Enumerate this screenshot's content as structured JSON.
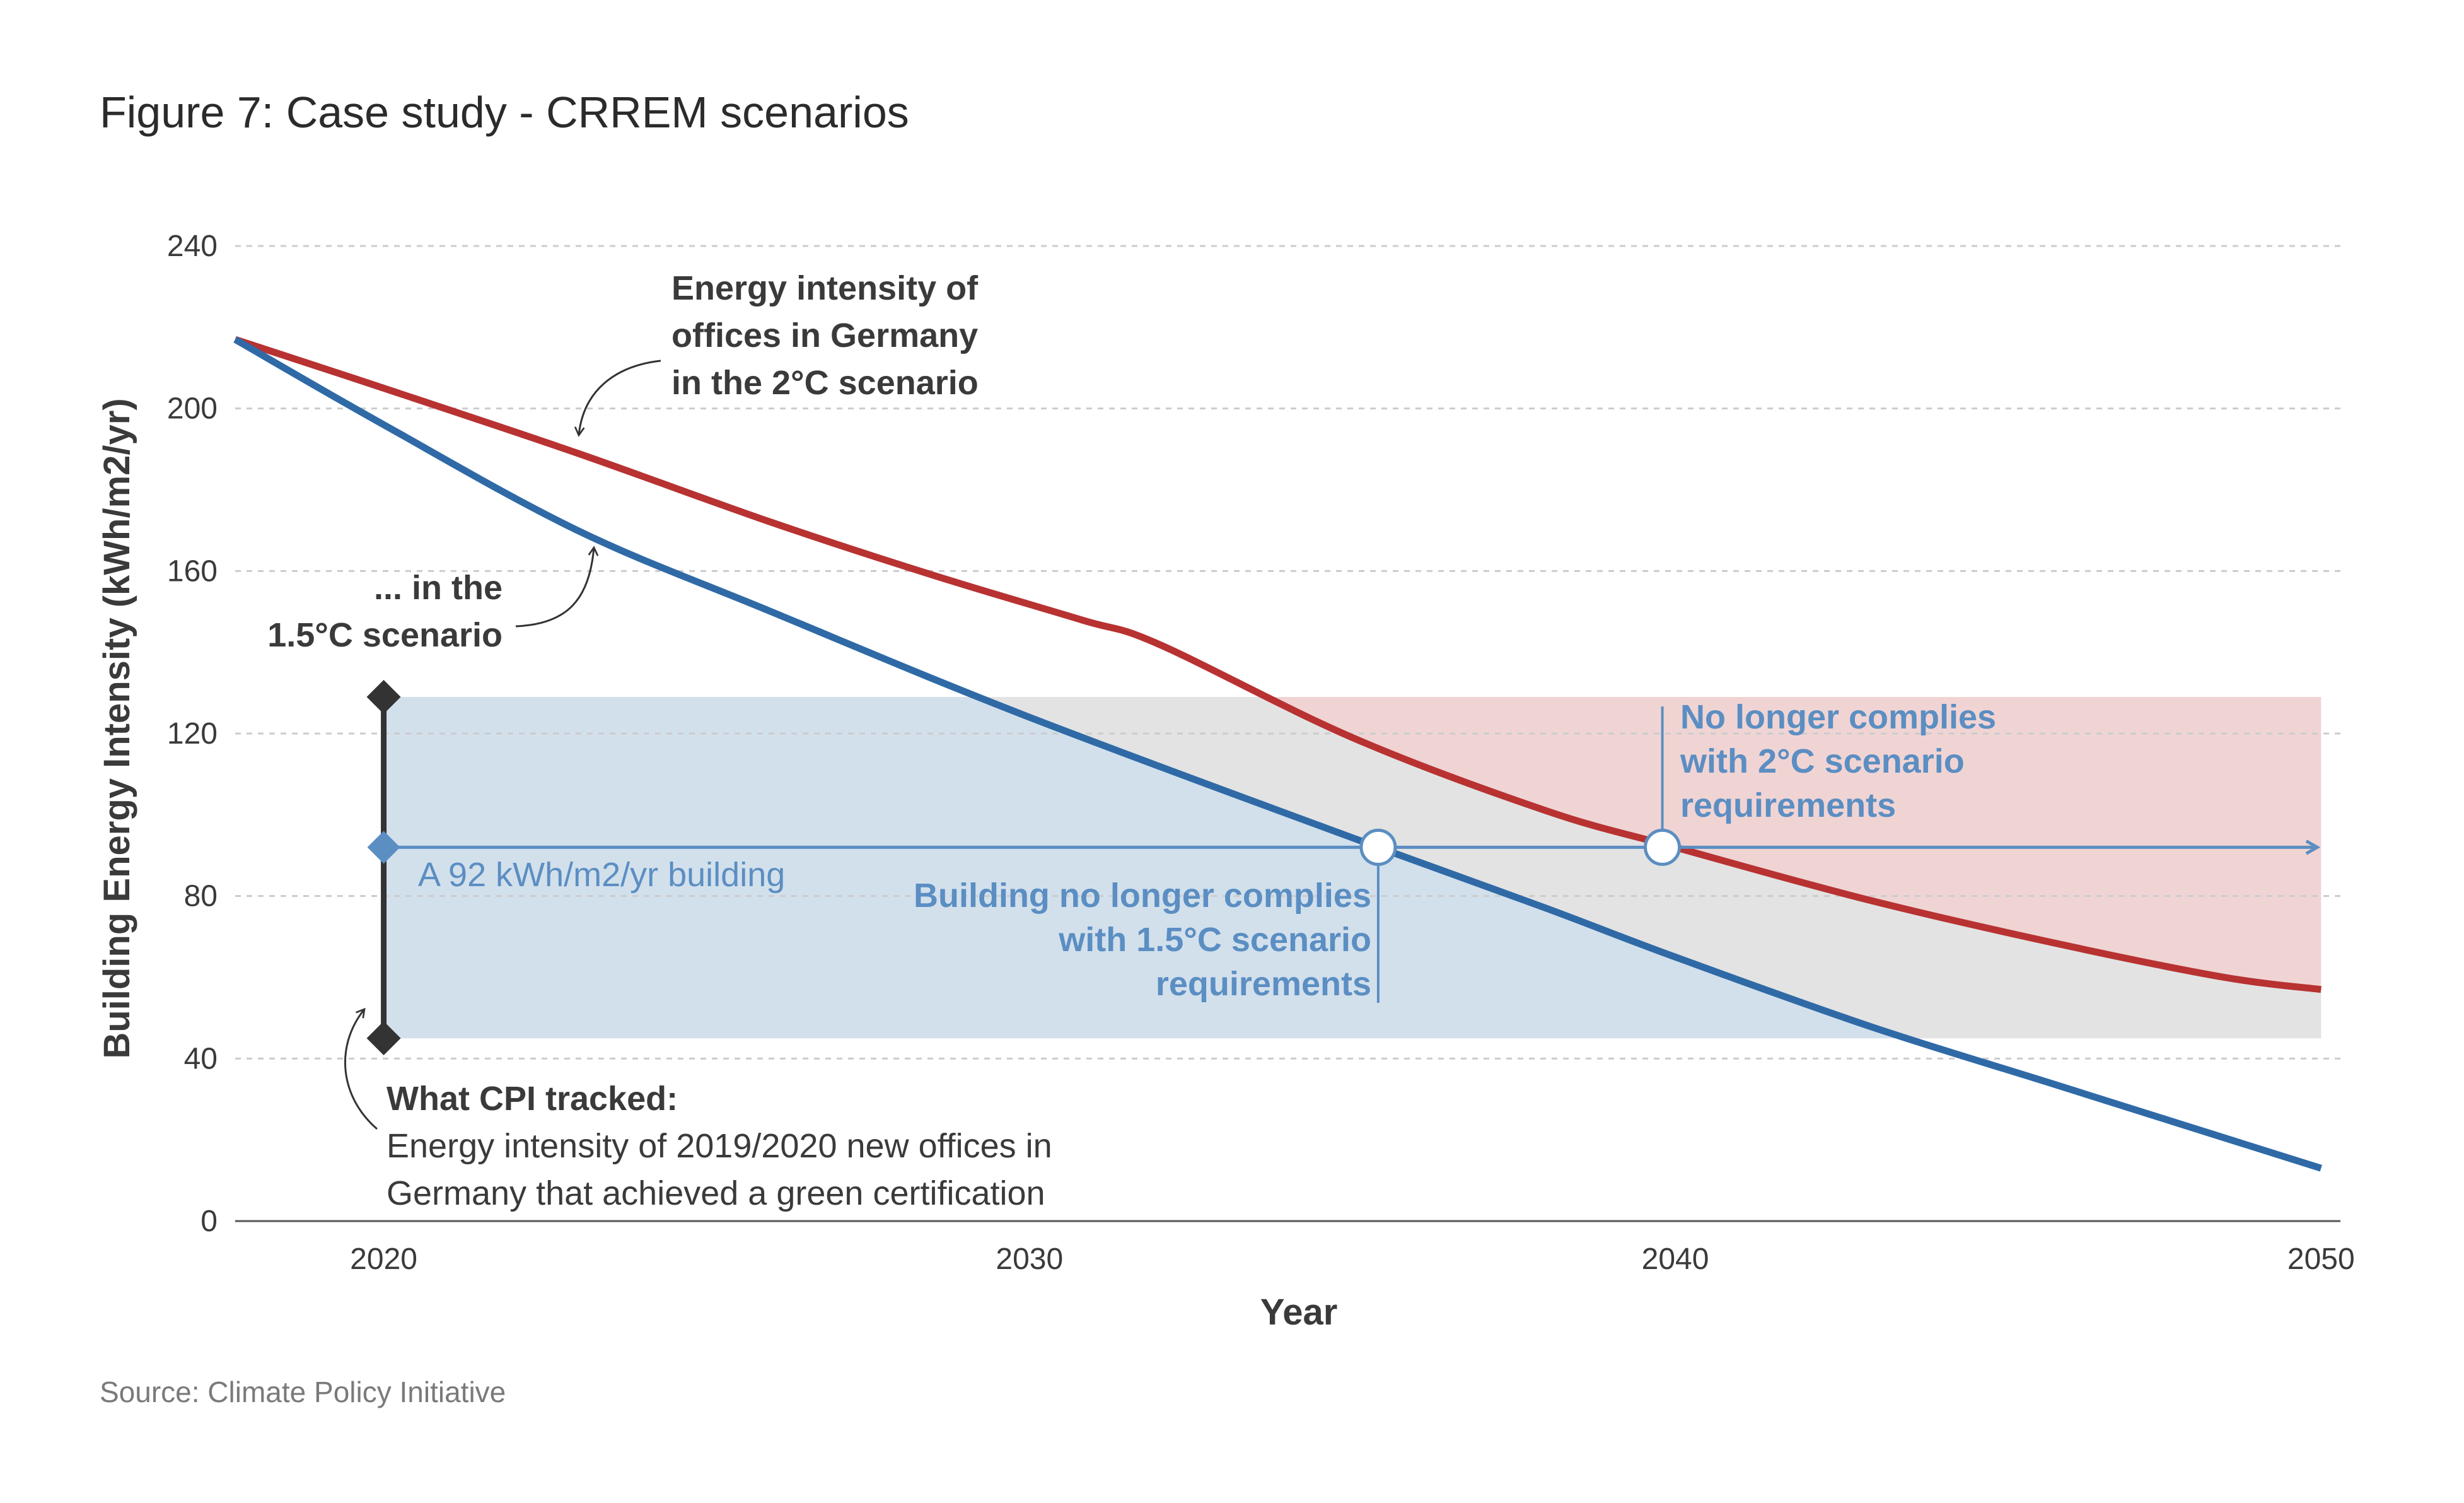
{
  "title": "Figure 7: Case study - CRREM scenarios",
  "source": "Source: Climate Policy Initiative",
  "colors": {
    "red_line": "#b83232",
    "blue_line": "#2f6aa6",
    "building_line": "#5b8ec2",
    "blue_band": "#d2e0ec",
    "gray_band": "#e3e3e3",
    "red_band": "#f0d4d4",
    "range_marker": "#333333",
    "grid": "#cccccc",
    "text": "#3a3a3a"
  },
  "chart_data": {
    "type": "line",
    "xlabel": "Year",
    "ylabel": "Building Energy Intensity (kWh/m2/yr)",
    "xlim": [
      2017.7,
      2050.3
    ],
    "ylim": [
      0,
      240
    ],
    "x_ticks": [
      2020,
      2030,
      2040,
      2050
    ],
    "y_ticks": [
      0,
      40,
      80,
      120,
      160,
      200,
      240
    ],
    "grid": "horizontal dashed",
    "series": [
      {
        "id": "two_degree",
        "x": [
          2017.7,
          2020,
          2023,
          2026,
          2028.5,
          2030.8,
          2032,
          2035,
          2038,
          2040,
          2043,
          2046,
          2048.5,
          2050
        ],
        "y": [
          217,
          205,
          189,
          172,
          159,
          148,
          142,
          119,
          101,
          92,
          79,
          68,
          60,
          57
        ]
      },
      {
        "id": "one_point_five_degree",
        "x": [
          2017.7,
          2020,
          2023,
          2026,
          2030,
          2035.4,
          2038,
          2040,
          2043,
          2046,
          2050
        ],
        "y": [
          217,
          196,
          170,
          150,
          124,
          92,
          77,
          65,
          48,
          33,
          13
        ]
      }
    ],
    "building": {
      "value": 92,
      "label": "A 92 kWh/m2/yr building"
    },
    "cpi_range": {
      "low": 45,
      "high": 129,
      "x": 2020
    },
    "bands": {
      "y_low": 45,
      "y_high": 129,
      "x_start": 2020,
      "x_end": 2050
    },
    "crossings": [
      {
        "x": 2035.4,
        "y": 92
      },
      {
        "x": 2039.8,
        "y": 92
      }
    ],
    "annotations": {
      "two_degree_label": [
        "Energy intensity of",
        "offices in Germany",
        "in the "
      ],
      "two_degree_bold": "2°C scenario",
      "one_five_label": "... in the",
      "one_five_bold": "1.5°C scenario",
      "cpi_title": "What CPI tracked:",
      "cpi_lines": [
        "Energy intensity of 2019/2020 new offices in",
        "Germany that achieved a green certification"
      ],
      "fail_15": [
        "Building no longer complies",
        "with 1.5°C scenario",
        "requirements"
      ],
      "fail_2": [
        "No longer complies",
        "with 2°C scenario",
        "requirements"
      ]
    }
  }
}
